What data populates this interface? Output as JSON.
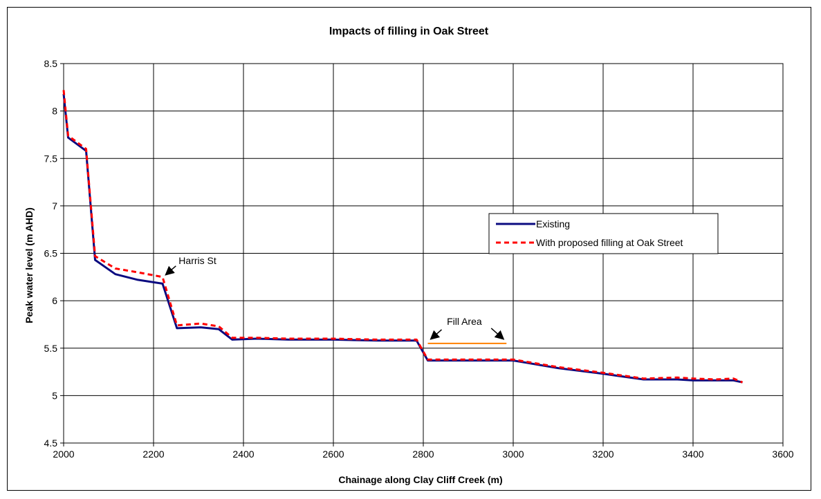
{
  "colors": {
    "existing": "#0a0a80",
    "proposed": "#ff0000",
    "fill_area": "#ff8000",
    "grid": "#000000",
    "plot_bg": "#ffffff"
  },
  "chart_data": {
    "type": "line",
    "title": "Impacts of filling in Oak Street",
    "xlabel": "Chainage along Clay Cliff Creek (m)",
    "ylabel": "Peak water level (m AHD)",
    "xlim": [
      2000,
      3600
    ],
    "ylim": [
      4.5,
      8.5
    ],
    "x_ticks": [
      2000,
      2200,
      2400,
      2600,
      2800,
      3000,
      3200,
      3400,
      3600
    ],
    "y_ticks": [
      4.5,
      5,
      5.5,
      6,
      6.5,
      7,
      7.5,
      8,
      8.5
    ],
    "x_tick_labels": [
      "2000",
      "2200",
      "2400",
      "2600",
      "2800",
      "3000",
      "3200",
      "3400",
      "3600"
    ],
    "y_tick_labels": [
      "4.5",
      "5",
      "5.5",
      "6",
      "6.5",
      "7",
      "7.5",
      "8",
      "8.5"
    ],
    "grid": true,
    "legend_position": "center-right",
    "series": [
      {
        "name": "Existing",
        "style": "solid",
        "x": [
          2000,
          2010,
          2050,
          2070,
          2115,
          2165,
          2220,
          2252,
          2305,
          2345,
          2375,
          2430,
          2500,
          2600,
          2700,
          2785,
          2810,
          2900,
          3000,
          3100,
          3200,
          3290,
          3365,
          3400,
          3450,
          3490,
          3510
        ],
        "y": [
          8.18,
          7.72,
          7.58,
          6.43,
          6.28,
          6.22,
          6.18,
          5.71,
          5.72,
          5.7,
          5.59,
          5.6,
          5.59,
          5.59,
          5.58,
          5.58,
          5.37,
          5.37,
          5.37,
          5.29,
          5.23,
          5.17,
          5.17,
          5.16,
          5.16,
          5.16,
          5.14
        ]
      },
      {
        "name": "With proposed filling at Oak Street",
        "style": "dashed",
        "x": [
          2000,
          2010,
          2050,
          2070,
          2115,
          2165,
          2220,
          2252,
          2305,
          2345,
          2375,
          2430,
          2500,
          2600,
          2700,
          2785,
          2810,
          2900,
          3000,
          3100,
          3200,
          3290,
          3365,
          3400,
          3450,
          3490,
          3510
        ],
        "y": [
          8.22,
          7.74,
          7.6,
          6.47,
          6.34,
          6.3,
          6.25,
          5.74,
          5.76,
          5.73,
          5.61,
          5.61,
          5.6,
          5.6,
          5.59,
          5.59,
          5.38,
          5.38,
          5.38,
          5.3,
          5.24,
          5.18,
          5.19,
          5.18,
          5.17,
          5.18,
          5.14
        ]
      }
    ],
    "annotations": [
      {
        "text": "Harris St",
        "arrow_to": [
          2222,
          6.25
        ]
      },
      {
        "text": "Fill Area",
        "line_x": [
          2810,
          2985
        ],
        "line_y": 5.55
      }
    ]
  }
}
